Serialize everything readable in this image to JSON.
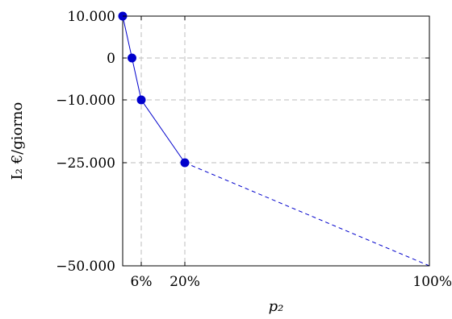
{
  "chart_data": {
    "type": "line",
    "xlabel": "p₂",
    "ylabel": "I₂  €/giorno",
    "x_ticks": [
      {
        "label": "6%",
        "value": 6
      },
      {
        "label": "20%",
        "value": 20
      },
      {
        "label": "100%",
        "value": 100
      }
    ],
    "y_ticks": [
      {
        "label": "10.000",
        "value": 10000
      },
      {
        "label": "0",
        "value": 0
      },
      {
        "label": "−10.000",
        "value": -10000
      },
      {
        "label": "−25.000",
        "value": -25000
      },
      {
        "label": "−50.000",
        "value": -50000
      }
    ],
    "xlim": [
      0,
      100
    ],
    "ylim": [
      -50000,
      10000
    ],
    "grid": "dashed at tick values",
    "series": [
      {
        "style": "solid-with-markers",
        "color": "#0000cc",
        "points": [
          {
            "x": 0,
            "y": 10000
          },
          {
            "x": 3,
            "y": 0
          },
          {
            "x": 6,
            "y": -10000
          },
          {
            "x": 20,
            "y": -25000
          }
        ]
      },
      {
        "style": "dashed",
        "color": "#0000cc",
        "points": [
          {
            "x": 20,
            "y": -25000
          },
          {
            "x": 100,
            "y": -50000
          }
        ]
      }
    ]
  }
}
